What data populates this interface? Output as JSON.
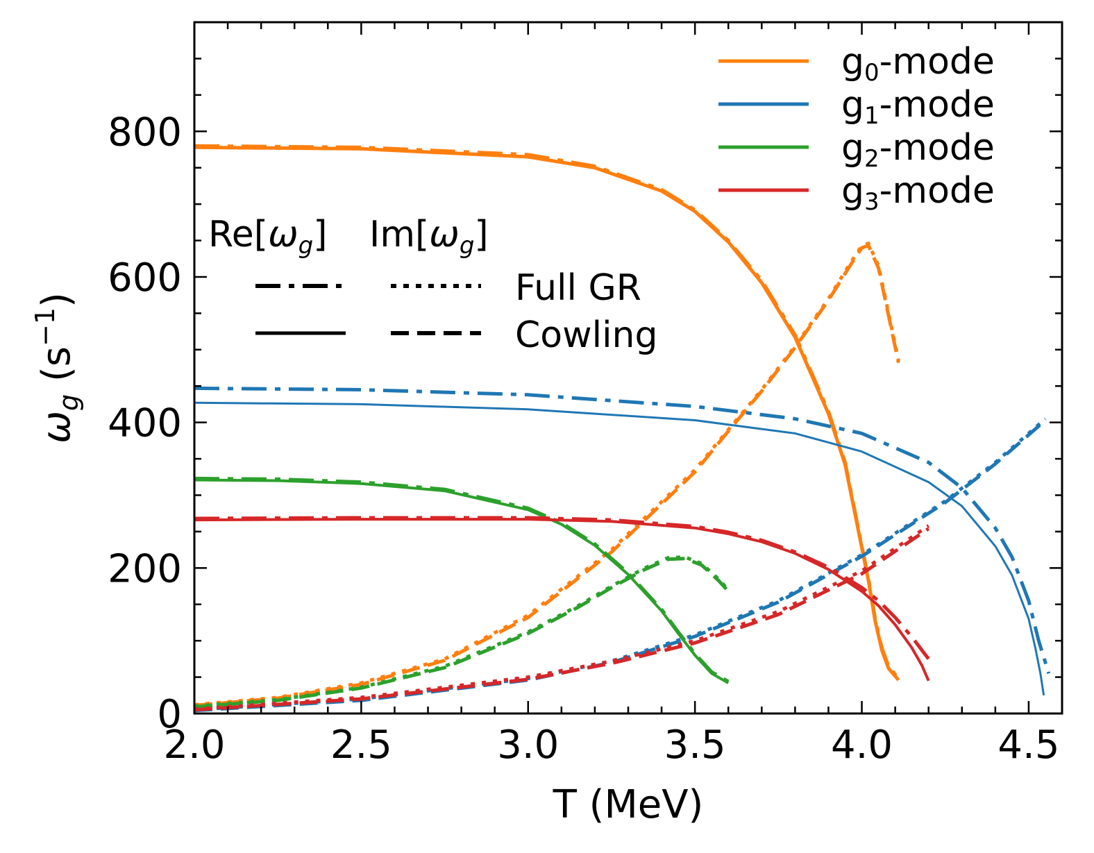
{
  "chart_data": {
    "type": "line",
    "title": "",
    "xlabel": "T (MeV)",
    "ylabel_main": "ω",
    "ylabel_sub": "g",
    "ylabel_unit_pre": " (s",
    "ylabel_unit_exp": "−1",
    "ylabel_unit_post": ")",
    "xlim": [
      2.0,
      4.6
    ],
    "ylim": [
      0,
      950
    ],
    "xticks": [
      2.0,
      2.5,
      3.0,
      3.5,
      4.0,
      4.5
    ],
    "xtick_labels": [
      "2.0",
      "2.5",
      "3.0",
      "3.5",
      "4.0",
      "4.5"
    ],
    "yticks": [
      0,
      200,
      400,
      600,
      800
    ],
    "ytick_labels": [
      "0",
      "200",
      "400",
      "600",
      "800"
    ],
    "grid": false,
    "legend_modes": [
      {
        "name": "g0-mode",
        "base": "g",
        "sub": "0",
        "suffix": "-mode",
        "color": "#ff7f0e"
      },
      {
        "name": "g1-mode",
        "base": "g",
        "sub": "1",
        "suffix": "-mode",
        "color": "#1f77b4"
      },
      {
        "name": "g2-mode",
        "base": "g",
        "sub": "2",
        "suffix": "-mode",
        "color": "#2ca02c"
      },
      {
        "name": "g3-mode",
        "base": "g",
        "sub": "3",
        "suffix": "-mode",
        "color": "#d62728"
      }
    ],
    "legend_styles": {
      "header_re_pre": "Re[",
      "header_re_post": "]",
      "header_im_pre": "Im[",
      "header_im_post": "]",
      "omega": "ω",
      "omega_sub": "g",
      "row1_label": "Full GR",
      "row2_label": "Cowling"
    },
    "series": [
      {
        "name": "g0 Re Full GR",
        "mode": "g0",
        "part": "Re",
        "method": "Full GR",
        "color": "#ff7f0e",
        "style": "dashdot",
        "width": 5,
        "x": [
          2.0,
          2.5,
          3.0,
          3.2,
          3.4,
          3.5,
          3.6,
          3.7,
          3.8,
          3.9,
          3.95,
          4.0,
          4.02,
          4.04,
          4.06,
          4.08,
          4.11
        ],
        "y": [
          780,
          778,
          768,
          752,
          720,
          692,
          650,
          595,
          520,
          415,
          345,
          230,
          185,
          130,
          90,
          65,
          48
        ]
      },
      {
        "name": "g0 Re Cowling",
        "mode": "g0",
        "part": "Re",
        "method": "Cowling",
        "color": "#ff7f0e",
        "style": "solid",
        "width": 5,
        "x": [
          2.0,
          2.5,
          3.0,
          3.2,
          3.4,
          3.5,
          3.6,
          3.7,
          3.8,
          3.9,
          3.95,
          4.0,
          4.02,
          4.04,
          4.06,
          4.08,
          4.11
        ],
        "y": [
          778,
          776,
          765,
          750,
          718,
          690,
          648,
          592,
          517,
          412,
          342,
          228,
          182,
          127,
          87,
          62,
          46
        ]
      },
      {
        "name": "g0 Im Full GR",
        "mode": "g0",
        "part": "Im",
        "method": "Full GR",
        "color": "#ff7f0e",
        "style": "dotted",
        "width": 5,
        "x": [
          2.0,
          2.25,
          2.5,
          2.75,
          3.0,
          3.25,
          3.5,
          3.6,
          3.7,
          3.8,
          3.9,
          3.96,
          4.0,
          4.02,
          4.05,
          4.08,
          4.11
        ],
        "y": [
          12,
          22,
          42,
          75,
          135,
          225,
          335,
          390,
          445,
          505,
          570,
          615,
          643,
          646,
          615,
          550,
          485
        ]
      },
      {
        "name": "g0 Im Cowling",
        "mode": "g0",
        "part": "Im",
        "method": "Cowling",
        "color": "#ff7f0e",
        "style": "dashed",
        "width": 5,
        "x": [
          2.0,
          2.25,
          2.5,
          2.75,
          3.0,
          3.25,
          3.5,
          3.6,
          3.7,
          3.8,
          3.9,
          3.96,
          4.0,
          4.02,
          4.05,
          4.08,
          4.11
        ],
        "y": [
          11,
          21,
          40,
          73,
          132,
          222,
          332,
          388,
          443,
          503,
          568,
          612,
          640,
          643,
          612,
          547,
          482
        ]
      },
      {
        "name": "g1 Re Full GR",
        "mode": "g1",
        "part": "Re",
        "method": "Full GR",
        "color": "#1f77b4",
        "style": "dashdot",
        "width": 5,
        "x": [
          2.0,
          2.5,
          3.0,
          3.5,
          3.8,
          4.0,
          4.2,
          4.3,
          4.4,
          4.45,
          4.5,
          4.53,
          4.55,
          4.56
        ],
        "y": [
          447,
          445,
          438,
          422,
          405,
          385,
          345,
          310,
          255,
          215,
          155,
          100,
          70,
          55
        ]
      },
      {
        "name": "g1 Re Cowling",
        "mode": "g1",
        "part": "Re",
        "method": "Cowling",
        "color": "#1f77b4",
        "style": "solid",
        "width": 3,
        "x": [
          2.0,
          2.5,
          3.0,
          3.5,
          3.8,
          4.0,
          4.2,
          4.3,
          4.4,
          4.45,
          4.5,
          4.52,
          4.535,
          4.545
        ],
        "y": [
          427,
          425,
          418,
          403,
          385,
          360,
          318,
          285,
          230,
          190,
          130,
          90,
          55,
          25
        ]
      },
      {
        "name": "g1 Im Full GR",
        "mode": "g1",
        "part": "Im",
        "method": "Full GR",
        "color": "#1f77b4",
        "style": "dotted",
        "width": 5,
        "x": [
          2.0,
          2.5,
          3.0,
          3.25,
          3.5,
          3.75,
          4.0,
          4.25,
          4.4,
          4.55
        ],
        "y": [
          5,
          20,
          48,
          72,
          108,
          155,
          218,
          292,
          345,
          405
        ]
      },
      {
        "name": "g1 Im Cowling",
        "mode": "g1",
        "part": "Im",
        "method": "Cowling",
        "color": "#1f77b4",
        "style": "dashed",
        "width": 5,
        "x": [
          2.0,
          2.5,
          3.0,
          3.25,
          3.5,
          3.75,
          4.0,
          4.25,
          4.4,
          4.55
        ],
        "y": [
          4,
          18,
          46,
          70,
          106,
          153,
          216,
          290,
          343,
          403
        ]
      },
      {
        "name": "g2 Re Full GR",
        "mode": "g2",
        "part": "Re",
        "method": "Full GR",
        "color": "#2ca02c",
        "style": "dashdot",
        "width": 5,
        "x": [
          2.0,
          2.25,
          2.5,
          2.75,
          3.0,
          3.1,
          3.2,
          3.3,
          3.4,
          3.45,
          3.5,
          3.55,
          3.6
        ],
        "y": [
          323,
          322,
          318,
          308,
          282,
          262,
          233,
          193,
          143,
          112,
          82,
          57,
          44
        ]
      },
      {
        "name": "g2 Re Cowling",
        "mode": "g2",
        "part": "Re",
        "method": "Cowling",
        "color": "#2ca02c",
        "style": "solid",
        "width": 4,
        "x": [
          2.0,
          2.25,
          2.5,
          2.75,
          3.0,
          3.1,
          3.2,
          3.3,
          3.4,
          3.45,
          3.5,
          3.55,
          3.6
        ],
        "y": [
          321,
          320,
          316,
          306,
          280,
          260,
          231,
          191,
          141,
          110,
          80,
          55,
          42
        ]
      },
      {
        "name": "g2 Im Full GR",
        "mode": "g2",
        "part": "Im",
        "method": "Full GR",
        "color": "#2ca02c",
        "style": "dotted",
        "width": 5,
        "x": [
          2.0,
          2.25,
          2.5,
          2.75,
          3.0,
          3.15,
          3.25,
          3.35,
          3.42,
          3.47,
          3.52,
          3.57,
          3.6
        ],
        "y": [
          10,
          19,
          36,
          65,
          112,
          148,
          175,
          200,
          214,
          215,
          206,
          185,
          170
        ]
      },
      {
        "name": "g2 Im Cowling",
        "mode": "g2",
        "part": "Im",
        "method": "Cowling",
        "color": "#2ca02c",
        "style": "dashed",
        "width": 5,
        "x": [
          2.0,
          2.25,
          2.5,
          2.75,
          3.0,
          3.15,
          3.25,
          3.35,
          3.42,
          3.47,
          3.52,
          3.57,
          3.6
        ],
        "y": [
          9,
          18,
          35,
          63,
          110,
          146,
          173,
          198,
          212,
          213,
          204,
          183,
          168
        ]
      },
      {
        "name": "g3 Re Full GR",
        "mode": "g3",
        "part": "Re",
        "method": "Full GR",
        "color": "#d62728",
        "style": "dashdot",
        "width": 5,
        "x": [
          2.0,
          2.5,
          3.0,
          3.25,
          3.5,
          3.6,
          3.7,
          3.8,
          3.9,
          4.0,
          4.05,
          4.1,
          4.15,
          4.18,
          4.2
        ],
        "y": [
          268,
          269,
          269,
          266,
          257,
          249,
          238,
          222,
          201,
          173,
          155,
          132,
          105,
          87,
          75
        ]
      },
      {
        "name": "g3 Re Cowling",
        "mode": "g3",
        "part": "Re",
        "method": "Cowling",
        "color": "#d62728",
        "style": "solid",
        "width": 4,
        "x": [
          2.0,
          2.5,
          3.0,
          3.25,
          3.5,
          3.6,
          3.7,
          3.8,
          3.9,
          4.0,
          4.05,
          4.1,
          4.15,
          4.18,
          4.2
        ],
        "y": [
          266,
          267,
          267,
          264,
          255,
          247,
          236,
          220,
          198,
          168,
          148,
          122,
          90,
          66,
          45
        ]
      },
      {
        "name": "g3 Im Full GR",
        "mode": "g3",
        "part": "Im",
        "method": "Full GR",
        "color": "#d62728",
        "style": "dotted",
        "width": 5,
        "x": [
          2.0,
          2.5,
          3.0,
          3.25,
          3.5,
          3.75,
          4.0,
          4.2
        ],
        "y": [
          6,
          22,
          50,
          72,
          100,
          140,
          196,
          258
        ]
      },
      {
        "name": "g3 Im Cowling",
        "mode": "g3",
        "part": "Im",
        "method": "Cowling",
        "color": "#d62728",
        "style": "dashed",
        "width": 5,
        "x": [
          2.0,
          2.5,
          3.0,
          3.25,
          3.5,
          3.75,
          4.0,
          4.2
        ],
        "y": [
          5,
          20,
          47,
          69,
          97,
          136,
          192,
          254
        ]
      }
    ]
  }
}
